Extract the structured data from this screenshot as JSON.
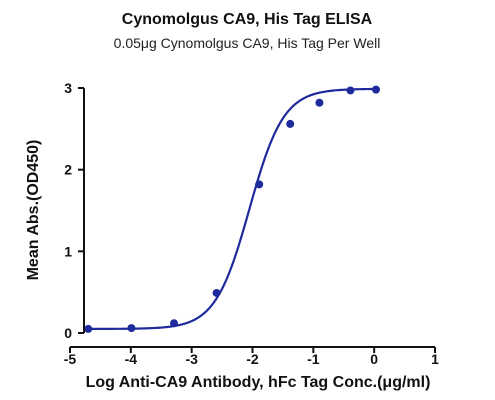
{
  "chart_data": {
    "type": "scatter",
    "title": "Cynomolgus CA9, His Tag ELISA",
    "subtitle": "0.05μg Cynomolgus CA9, His Tag Per Well",
    "xlabel": "Log Anti-CA9 Antibody, hFc Tag Conc.(μg/ml)",
    "ylabel": "Mean Abs.(OD450)",
    "xlim": [
      -5,
      1
    ],
    "ylim": [
      0,
      3
    ],
    "xticks": [
      -5,
      -4,
      -3,
      -2,
      -1,
      0,
      1
    ],
    "yticks": [
      0,
      1,
      2,
      3
    ],
    "grid": false,
    "colors": {
      "series": "#1f2a9c",
      "axis": "#111111"
    },
    "series": [
      {
        "x": [
          -4.7,
          -3.99,
          -3.29,
          -2.59,
          -1.89,
          -1.38,
          -0.9,
          -0.39,
          0.03
        ],
        "y": [
          0.05,
          0.06,
          0.12,
          0.49,
          1.82,
          2.56,
          2.82,
          2.97,
          2.98
        ]
      }
    ],
    "fit": {
      "type": "four-parameter-logistic",
      "bottom": 0.05,
      "top": 2.99,
      "logEC50": -2.05,
      "hill": 1.55
    }
  }
}
